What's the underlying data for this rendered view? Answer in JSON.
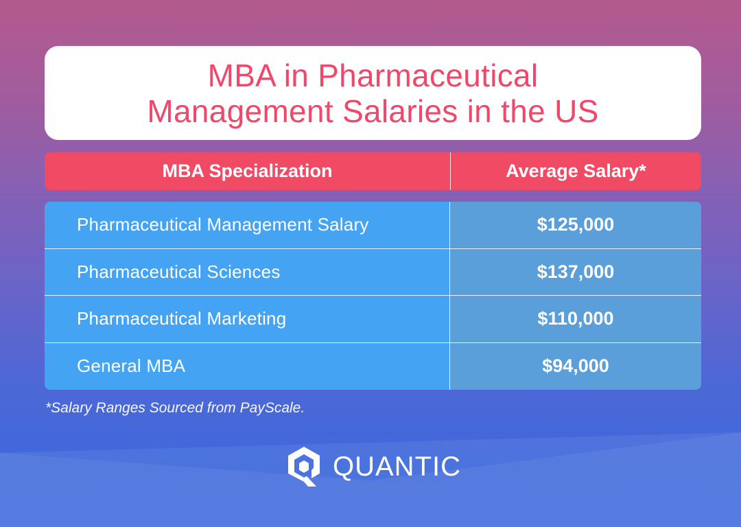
{
  "title": {
    "line1": "MBA in Pharmaceutical",
    "line2": "Management Salaries in the US"
  },
  "table": {
    "headers": [
      "MBA Specialization",
      "Average Salary*"
    ],
    "rows": [
      {
        "specialization": "Pharmaceutical Management Salary",
        "salary": "$125,000"
      },
      {
        "specialization": "Pharmaceutical Sciences",
        "salary": "$137,000"
      },
      {
        "specialization": "Pharmaceutical Marketing",
        "salary": "$110,000"
      },
      {
        "specialization": "General MBA",
        "salary": "$94,000"
      }
    ]
  },
  "footnote": "*Salary Ranges Sourced from PayScale.",
  "brand": {
    "name": "QUANTIC",
    "icon": "quantic-logo-icon"
  },
  "colors": {
    "title_text": "#f0476a",
    "header_bg": "#f04a65",
    "row_name_bg": "#44a4f3",
    "row_salary_bg": "#5a9fda"
  }
}
